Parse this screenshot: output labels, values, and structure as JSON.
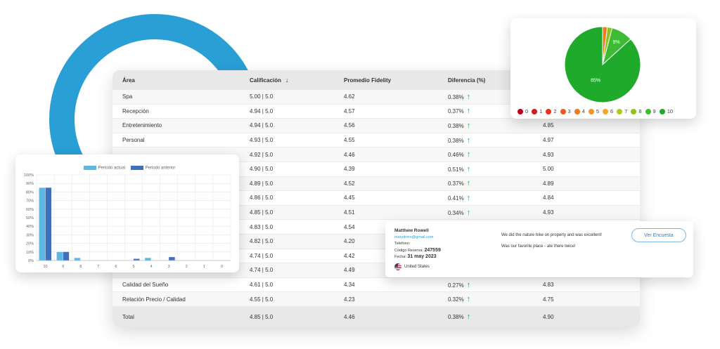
{
  "table": {
    "headers": [
      "Área",
      "Calificación",
      "Promedio Fidelity",
      "Diferencia (%)"
    ],
    "rows": [
      {
        "area": "Spa",
        "calificacion": "5.00 | 5.0",
        "promedio": "4.62",
        "diferencia": "0.38%",
        "extra": ""
      },
      {
        "area": "Recepción",
        "calificacion": "4.94 | 5.0",
        "promedio": "4.57",
        "diferencia": "0.37%",
        "extra": ""
      },
      {
        "area": "Entretenimiento",
        "calificacion": "4.94 | 5.0",
        "promedio": "4.56",
        "diferencia": "0.38%",
        "extra": "4.85"
      },
      {
        "area": "Personal",
        "calificacion": "4.93 | 5.0",
        "promedio": "4.55",
        "diferencia": "0.38%",
        "extra": "4.97"
      },
      {
        "area": "",
        "calificacion": "4.92 | 5.0",
        "promedio": "4.46",
        "diferencia": "0.46%",
        "extra": "4.93"
      },
      {
        "area": "",
        "calificacion": "4.90 | 5.0",
        "promedio": "4.39",
        "diferencia": "0.51%",
        "extra": "5.00"
      },
      {
        "area": "",
        "calificacion": "4.89 | 5.0",
        "promedio": "4.52",
        "diferencia": "0.37%",
        "extra": "4.89"
      },
      {
        "area": "",
        "calificacion": "4.86 | 5.0",
        "promedio": "4.45",
        "diferencia": "0.41%",
        "extra": "4.84"
      },
      {
        "area": "",
        "calificacion": "4.85 | 5.0",
        "promedio": "4.51",
        "diferencia": "0.34%",
        "extra": "4.93"
      },
      {
        "area": "",
        "calificacion": "4.83 | 5.0",
        "promedio": "4.54",
        "diferencia": "",
        "extra": ""
      },
      {
        "area": "",
        "calificacion": "4.82 | 5.0",
        "promedio": "4.20",
        "diferencia": "",
        "extra": ""
      },
      {
        "area": "",
        "calificacion": "4.74 | 5.0",
        "promedio": "4.42",
        "diferencia": "",
        "extra": ""
      },
      {
        "area": "",
        "calificacion": "4.74 | 5.0",
        "promedio": "4.49",
        "diferencia": "",
        "extra": ""
      },
      {
        "area": "Calidad del Sueño",
        "calificacion": "4.61 | 5.0",
        "promedio": "4.34",
        "diferencia": "0.27%",
        "extra": "4.83"
      },
      {
        "area": "Relación Precio / Calidad",
        "calificacion": "4.55 | 5.0",
        "promedio": "4.23",
        "diferencia": "0.32%",
        "extra": "4.75"
      }
    ],
    "total": {
      "area": "Total",
      "calificacion": "4.85 | 5.0",
      "promedio": "4.46",
      "diferencia": "0.38%",
      "extra": "4.90"
    },
    "up_arrow": "↑",
    "sort_arrow": "↓"
  },
  "bar_chart": {
    "legend": [
      "Periodo actual",
      "Periodo anterior"
    ],
    "colors": [
      "#5bb8e6",
      "#3f6fbf"
    ]
  },
  "chart_data": [
    {
      "type": "bar",
      "categories": [
        "10",
        "9",
        "8",
        "7",
        "6",
        "5",
        "4",
        "3",
        "2",
        "1",
        "0"
      ],
      "series": [
        {
          "name": "Periodo actual",
          "values": [
            85,
            10,
            3,
            0,
            0,
            0,
            3,
            0,
            0,
            0,
            0
          ]
        },
        {
          "name": "Periodo anterior",
          "values": [
            85,
            10,
            0,
            0,
            0,
            2,
            0,
            4,
            0,
            0,
            0
          ]
        }
      ],
      "ylim": [
        0,
        100
      ],
      "yticks": [
        "100%",
        "90%",
        "80%",
        "70%",
        "60%",
        "50%",
        "40%",
        "30%",
        "20%",
        "10%",
        "0%"
      ],
      "grid": true,
      "legend_position": "top"
    },
    {
      "type": "pie",
      "labels": [
        "0",
        "1",
        "2",
        "3",
        "4",
        "5",
        "6",
        "7",
        "8",
        "9",
        "10"
      ],
      "values": [
        0,
        0,
        0,
        0,
        2,
        0,
        0,
        0,
        2,
        9,
        85
      ],
      "slice_labels": {
        "9": "9%",
        "10": "85%"
      },
      "legend_position": "bottom"
    }
  ],
  "pie": {
    "colors": [
      "#c0001a",
      "#d41c1c",
      "#e8321e",
      "#ef5a20",
      "#f27a1f",
      "#f4962a",
      "#f5a623",
      "#b6c61a",
      "#8dc21f",
      "#3dbb34",
      "#1faa2c"
    ]
  },
  "survey": {
    "name": "Matthew Rowell",
    "email": "marydrers@gmail.com",
    "phone_label": "Telefono:",
    "code_label": "Código Reserva:",
    "code_value": "247559",
    "date_label": "Fecha:",
    "date_value": "31 may 2023",
    "country": "United States",
    "comment1": "We did the nature hike on property and was excellent!",
    "comment2": "Was our favorite place - ate there twice!",
    "button": "Ver Encuesta"
  }
}
